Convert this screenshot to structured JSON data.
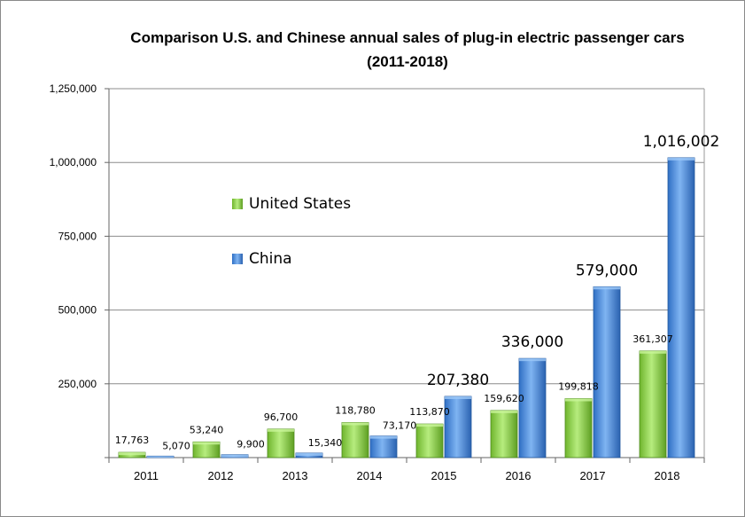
{
  "chart_data": {
    "type": "bar",
    "title": "Comparison  U.S. and Chinese annual sales of plug-in electric passenger cars",
    "subtitle": "(2011-2018)",
    "categories": [
      "2011",
      "2012",
      "2013",
      "2014",
      "2015",
      "2016",
      "2017",
      "2018"
    ],
    "series": [
      {
        "name": "United States",
        "color": "#8fd14f",
        "values": [
          17763,
          53240,
          96700,
          118780,
          113870,
          159620,
          199818,
          361307
        ],
        "labels": [
          "17,763",
          "53,240",
          "96,700",
          "118,780",
          "113,870",
          "159,620",
          "199,818",
          "361,307"
        ]
      },
      {
        "name": "China",
        "color": "#4f8fe0",
        "values": [
          5070,
          9900,
          15340,
          73170,
          207380,
          336000,
          579000,
          1016002
        ],
        "labels": [
          "5,070",
          "9,900",
          "15,340",
          "73,170",
          "207,380",
          "336,000",
          "579,000",
          "1,016,002"
        ]
      }
    ],
    "yticks": [
      0,
      250000,
      500000,
      750000,
      1000000,
      1250000
    ],
    "ytick_labels": [
      "",
      "250,000",
      "500,000",
      "750,000",
      "1,000,000",
      "1,250,000"
    ],
    "ylim": [
      0,
      1250000
    ],
    "grid": true,
    "legend_position": "inside-left"
  }
}
